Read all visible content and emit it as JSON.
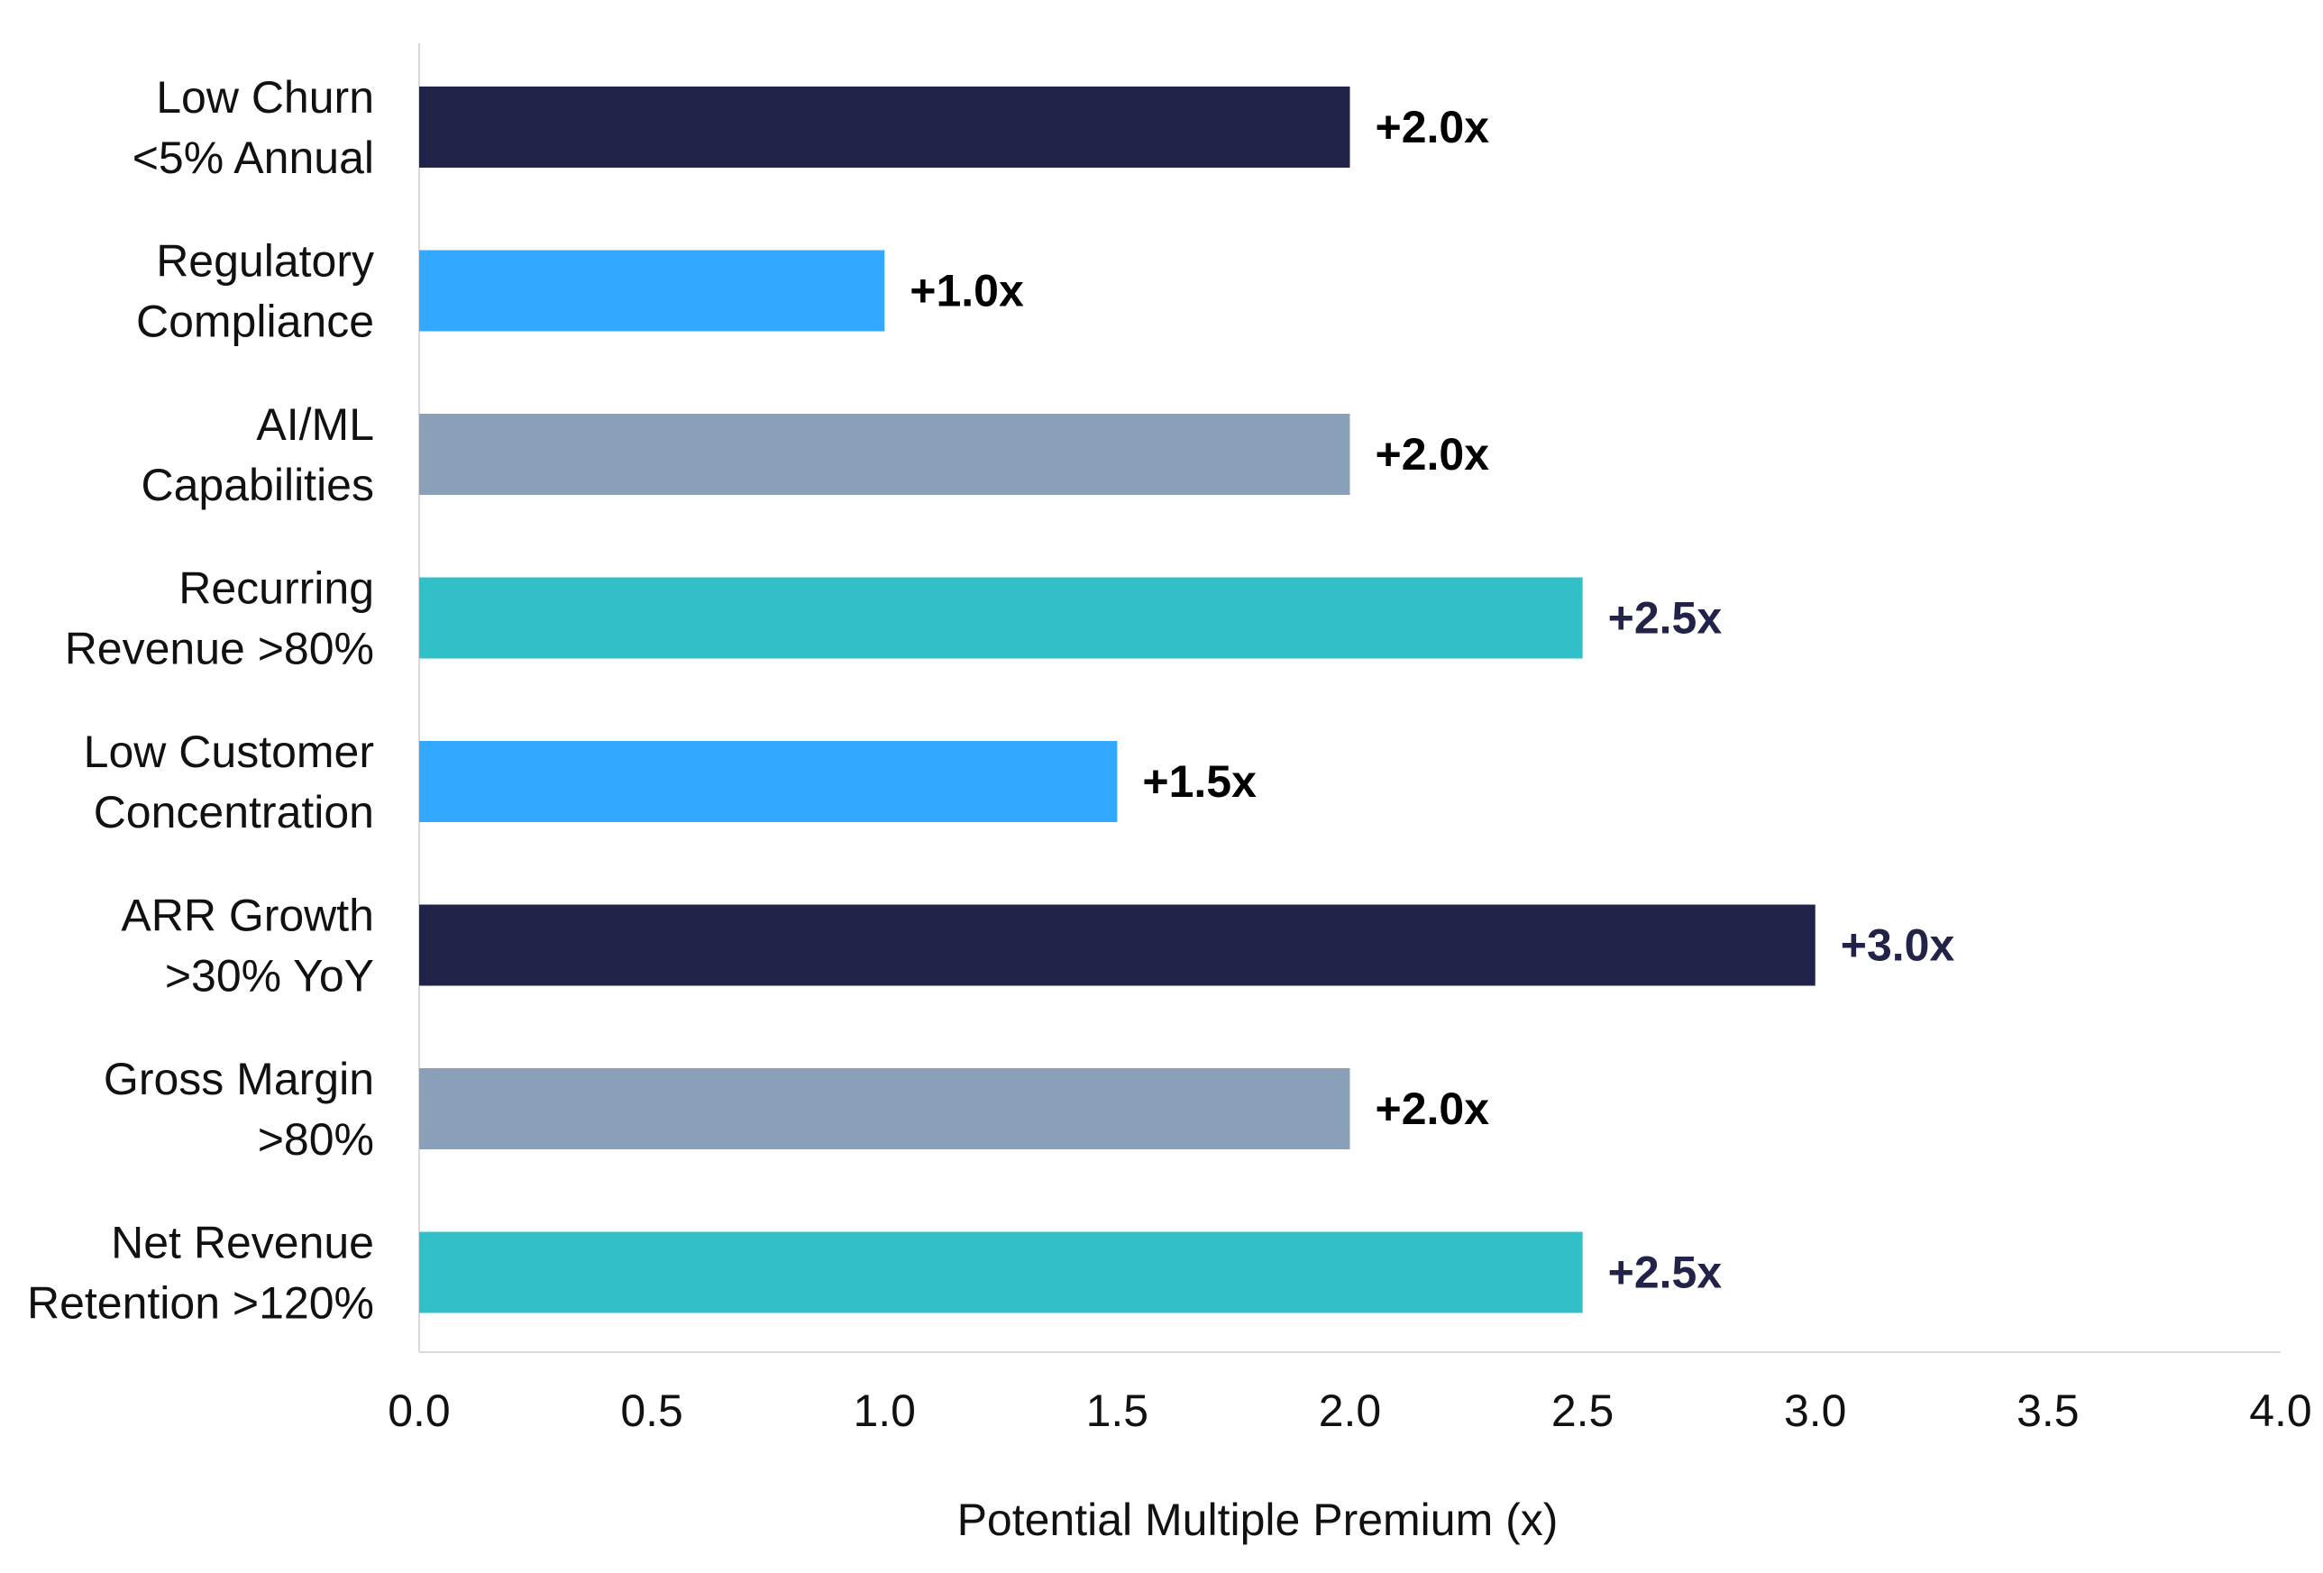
{
  "chart_data": {
    "type": "bar",
    "orientation": "horizontal",
    "title": "",
    "xlabel": "Potential Multiple Premium (x)",
    "ylabel": "",
    "xlim": [
      0,
      4
    ],
    "x_ticks": [
      "0.0",
      "0.5",
      "1.0",
      "1.5",
      "2.0",
      "2.5",
      "3.0",
      "3.5",
      "4.0"
    ],
    "grid": false,
    "legend": "none",
    "categories": [
      [
        "Low Churn",
        "<5% Annual"
      ],
      [
        "Regulatory",
        "Compliance"
      ],
      [
        "AI/ML",
        "Capabilities"
      ],
      [
        "Recurring",
        "Revenue >80%"
      ],
      [
        "Low Customer",
        "Concentration"
      ],
      [
        "ARR Growth",
        ">30% YoY"
      ],
      [
        "Gross Margin",
        ">80%"
      ],
      [
        "Net Revenue",
        "Retention >120%"
      ]
    ],
    "values": [
      2.0,
      1.0,
      2.0,
      2.5,
      1.5,
      3.0,
      2.0,
      2.5
    ],
    "data_labels": [
      "+2.0x",
      "+1.0x",
      "+2.0x",
      "+2.5x",
      "+1.5x",
      "+3.0x",
      "+2.0x",
      "+2.5x"
    ],
    "bar_colors": [
      "#222348",
      "#33A8FF",
      "#8AA0B8",
      "#31C0C8",
      "#33A8FF",
      "#222348",
      "#8AA0B8",
      "#31C0C8"
    ],
    "label_colors": [
      "#000000",
      "#000000",
      "#000000",
      "#222348",
      "#000000",
      "#222348",
      "#000000",
      "#222348"
    ]
  }
}
